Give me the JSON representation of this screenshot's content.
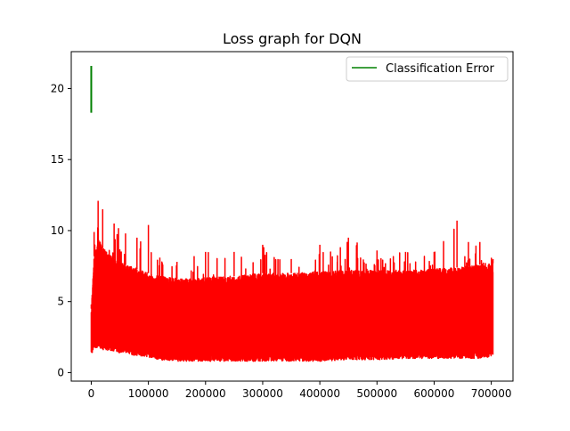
{
  "chart_data": {
    "type": "line",
    "title": "Loss graph for DQN",
    "xlabel": "",
    "ylabel": "",
    "xlim": [
      -35000,
      738000
    ],
    "ylim": [
      -0.6,
      22.6
    ],
    "xticks": [
      0,
      100000,
      200000,
      300000,
      400000,
      500000,
      600000,
      700000
    ],
    "xtick_labels": [
      "0",
      "100000",
      "200000",
      "300000",
      "400000",
      "500000",
      "600000",
      "700000"
    ],
    "yticks": [
      0,
      5,
      10,
      15,
      20
    ],
    "ytick_labels": [
      "0",
      "5",
      "10",
      "15",
      "20"
    ],
    "grid": false,
    "legend_position": "top-right",
    "series": [
      {
        "name": "Classification Error",
        "color": "#008000",
        "x": [
          0,
          0,
          0,
          0,
          0
        ],
        "y": [
          18.8,
          18.3,
          21.6,
          18.5,
          18.9
        ]
      },
      {
        "color": "#ff0000",
        "x_range": [
          0,
          703000
        ],
        "envelope": {
          "x": [
            0,
            5000,
            12000,
            20000,
            40000,
            60000,
            80000,
            100000,
            120000,
            150000,
            180000,
            200000,
            250000,
            300000,
            350000,
            400000,
            450000,
            500000,
            550000,
            600000,
            640000,
            660000,
            680000,
            703000
          ],
          "upper": [
            4.8,
            9.9,
            12.1,
            11.5,
            10.5,
            9.8,
            9.5,
            10.4,
            8.1,
            7.8,
            8.2,
            8.5,
            8.5,
            9.0,
            8.0,
            9.0,
            9.5,
            8.6,
            8.5,
            8.5,
            10.7,
            9.2,
            9.2,
            8.0
          ],
          "lower": [
            1.1,
            1.8,
            1.7,
            1.6,
            1.5,
            1.3,
            1.2,
            1.1,
            0.9,
            0.8,
            0.8,
            0.8,
            0.8,
            0.8,
            0.8,
            0.8,
            0.9,
            0.9,
            1.0,
            1.0,
            1.0,
            1.0,
            1.0,
            1.1
          ],
          "dense_upper": [
            4.5,
            8.2,
            9.5,
            8.8,
            8.0,
            7.6,
            7.3,
            7.0,
            6.8,
            6.6,
            6.6,
            6.7,
            6.8,
            7.0,
            7.0,
            7.1,
            7.2,
            7.2,
            7.2,
            7.3,
            7.4,
            7.5,
            7.6,
            7.7
          ]
        }
      }
    ]
  }
}
